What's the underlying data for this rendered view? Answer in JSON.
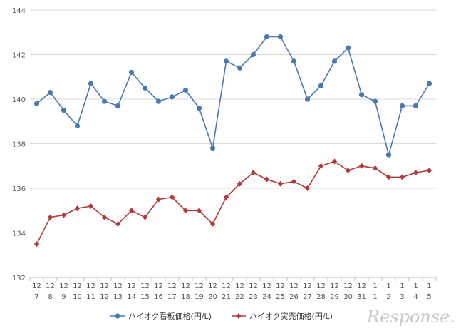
{
  "chart_data": {
    "type": "line",
    "title": "",
    "xlabel": "",
    "ylabel": "",
    "ylim": [
      132,
      144
    ],
    "yticks": [
      132,
      134,
      136,
      138,
      140,
      142,
      144
    ],
    "categories": [
      {
        "month": "12",
        "day": "7"
      },
      {
        "month": "12",
        "day": "8"
      },
      {
        "month": "12",
        "day": "9"
      },
      {
        "month": "12",
        "day": "10"
      },
      {
        "month": "12",
        "day": "11"
      },
      {
        "month": "12",
        "day": "12"
      },
      {
        "month": "12",
        "day": "13"
      },
      {
        "month": "12",
        "day": "14"
      },
      {
        "month": "12",
        "day": "15"
      },
      {
        "month": "12",
        "day": "16"
      },
      {
        "month": "12",
        "day": "17"
      },
      {
        "month": "12",
        "day": "18"
      },
      {
        "month": "12",
        "day": "19"
      },
      {
        "month": "12",
        "day": "20"
      },
      {
        "month": "12",
        "day": "21"
      },
      {
        "month": "12",
        "day": "22"
      },
      {
        "month": "12",
        "day": "23"
      },
      {
        "month": "12",
        "day": "24"
      },
      {
        "month": "12",
        "day": "25"
      },
      {
        "month": "12",
        "day": "26"
      },
      {
        "month": "12",
        "day": "27"
      },
      {
        "month": "12",
        "day": "28"
      },
      {
        "month": "12",
        "day": "29"
      },
      {
        "month": "12",
        "day": "30"
      },
      {
        "month": "12",
        "day": "31"
      },
      {
        "month": "1",
        "day": "1"
      },
      {
        "month": "1",
        "day": "2"
      },
      {
        "month": "1",
        "day": "3"
      },
      {
        "month": "1",
        "day": "4"
      },
      {
        "month": "1",
        "day": "5"
      }
    ],
    "series": [
      {
        "name": "ハイオク看板価格(円/L)",
        "color": "#4a78b0",
        "marker": "circle",
        "values": [
          139.8,
          140.3,
          139.5,
          138.8,
          140.7,
          139.9,
          139.7,
          141.2,
          140.5,
          139.9,
          140.1,
          140.4,
          139.6,
          137.8,
          141.7,
          141.4,
          142.0,
          142.8,
          142.8,
          141.7,
          140.0,
          140.6,
          141.7,
          142.3,
          140.2,
          139.9,
          137.5,
          139.7,
          139.7,
          140.7
        ]
      },
      {
        "name": "ハイオク実売価格(円/L)",
        "color": "#b03a3a",
        "marker": "diamond",
        "values": [
          133.5,
          134.7,
          134.8,
          135.1,
          135.2,
          134.7,
          134.4,
          135.0,
          134.7,
          135.5,
          135.6,
          135.0,
          135.0,
          134.4,
          135.6,
          136.2,
          136.7,
          136.4,
          136.2,
          136.3,
          136.0,
          137.0,
          137.2,
          136.8,
          137.0,
          136.9,
          136.5,
          136.5,
          136.7,
          136.8
        ]
      }
    ],
    "grid": {
      "horizontal": true,
      "vertical": false,
      "color": "#d9d9d9"
    },
    "legend": "bottom-center"
  },
  "watermark": {
    "text": "Response."
  }
}
